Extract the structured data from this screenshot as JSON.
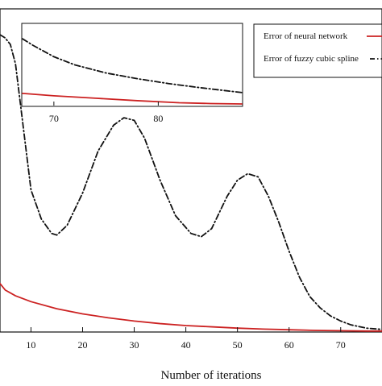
{
  "chart_data": [
    {
      "type": "line",
      "title": "",
      "xlabel": "Number of iterations",
      "ylabel": "",
      "xlim": [
        4,
        78
      ],
      "ylim": [
        0,
        1
      ],
      "xticks": [
        10,
        20,
        30,
        40,
        50,
        60,
        70
      ],
      "grid": false,
      "legend": "top-right",
      "series": [
        {
          "name": "Error of neural network",
          "color": "#cc2222",
          "line_style": "solid",
          "x": [
            4,
            5,
            7,
            10,
            15,
            20,
            25,
            30,
            35,
            40,
            45,
            50,
            55,
            60,
            65,
            70,
            75,
            78
          ],
          "y": [
            0.15,
            0.13,
            0.112,
            0.094,
            0.072,
            0.056,
            0.044,
            0.034,
            0.026,
            0.02,
            0.016,
            0.012,
            0.009,
            0.007,
            0.005,
            0.004,
            0.003,
            0.003
          ]
        },
        {
          "name": "Error of fuzzy cubic spline",
          "color": "#111111",
          "line_style": "dash-dot",
          "x": [
            4,
            5,
            6,
            7,
            8,
            10,
            12,
            14,
            15,
            17,
            20,
            23,
            26,
            28,
            30,
            32,
            35,
            38,
            41,
            43,
            45,
            48,
            50,
            52,
            54,
            56,
            58,
            60,
            62,
            64,
            66,
            68,
            70,
            72,
            75,
            78
          ],
          "y": [
            0.92,
            0.91,
            0.89,
            0.83,
            0.7,
            0.44,
            0.35,
            0.305,
            0.3,
            0.33,
            0.43,
            0.56,
            0.64,
            0.663,
            0.655,
            0.6,
            0.47,
            0.36,
            0.305,
            0.295,
            0.32,
            0.42,
            0.47,
            0.49,
            0.48,
            0.42,
            0.34,
            0.25,
            0.17,
            0.11,
            0.075,
            0.05,
            0.034,
            0.022,
            0.012,
            0.008
          ]
        }
      ]
    },
    {
      "type": "line",
      "role": "inset",
      "title": "",
      "xlabel": "",
      "ylabel": "",
      "xlim": [
        67,
        88
      ],
      "ylim": [
        0,
        1
      ],
      "xticks": [
        70,
        80
      ],
      "grid": false,
      "series": [
        {
          "name": "Error of neural network",
          "color": "#cc2222",
          "line_style": "solid",
          "x": [
            67,
            70,
            74,
            78,
            82,
            85,
            88
          ],
          "y": [
            0.15,
            0.12,
            0.09,
            0.06,
            0.035,
            0.025,
            0.02
          ]
        },
        {
          "name": "Error of fuzzy cubic spline",
          "color": "#111111",
          "line_style": "dash-dot",
          "x": [
            67,
            68,
            70,
            72,
            75,
            78,
            81,
            84,
            88
          ],
          "y": [
            0.82,
            0.74,
            0.6,
            0.5,
            0.4,
            0.33,
            0.27,
            0.22,
            0.16
          ]
        }
      ]
    }
  ]
}
